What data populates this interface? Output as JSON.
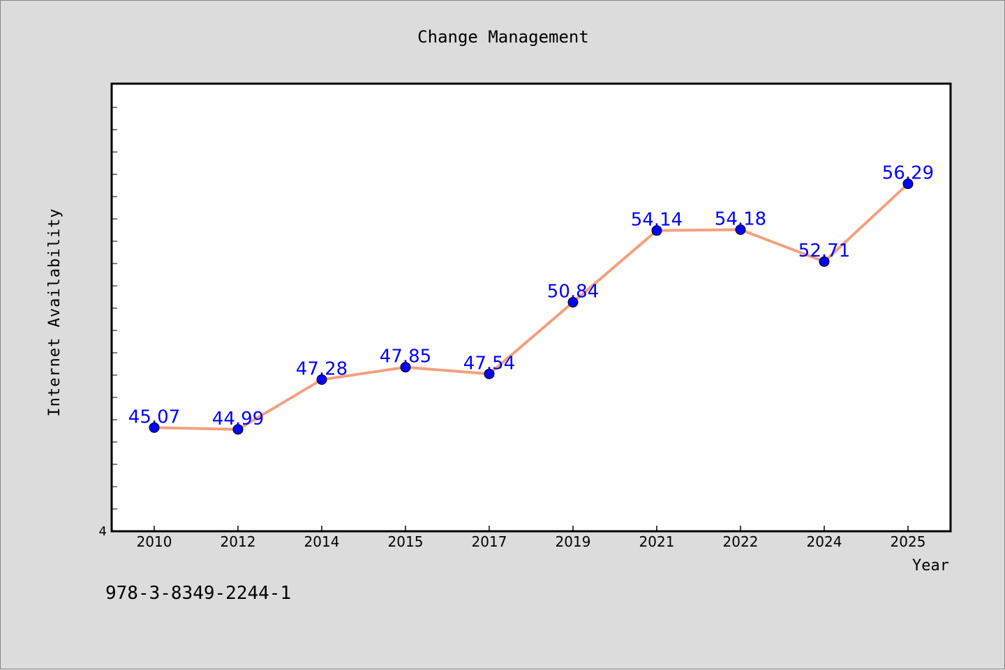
{
  "chart_data": {
    "type": "line",
    "title": "Change Management",
    "xlabel": "Year",
    "ylabel": "Internet Availability",
    "categories": [
      "2010",
      "2012",
      "2014",
      "2015",
      "2017",
      "2019",
      "2021",
      "2022",
      "2024",
      "2025"
    ],
    "series": [
      {
        "values": [
          45.07,
          44.99,
          47.28,
          47.85,
          47.54,
          50.84,
          54.14,
          54.18,
          52.71,
          56.29
        ],
        "labels": [
          "45.07",
          "44.99",
          "47.28",
          "47.85",
          "47.54",
          "50.84",
          "54.14",
          "54.18",
          "52.71",
          "56.29"
        ]
      }
    ],
    "ylim": [
      4,
      24
    ],
    "y_axis_label_note": "log scale, only tick label shown is 4",
    "y_tick_label": "4",
    "y_scale": "log",
    "ylim_data": [
      40.3,
      60.9
    ],
    "grid": false,
    "legend": "none",
    "line_color": "#f4a07f",
    "marker_color": "#0000ff",
    "label_color": "#0000ff",
    "plot_background": "#ffffff",
    "figure_background": "#dcdcdc"
  },
  "footer": {
    "isbn": "978-3-8349-2244-1"
  }
}
